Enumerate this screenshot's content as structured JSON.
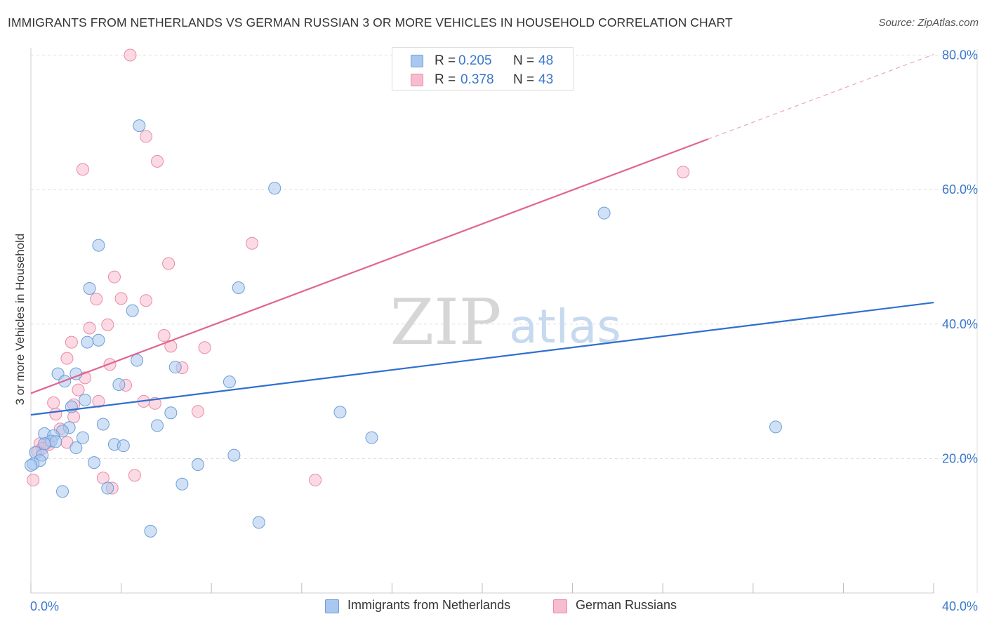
{
  "title": "IMMIGRANTS FROM NETHERLANDS VS GERMAN RUSSIAN 3 OR MORE VEHICLES IN HOUSEHOLD CORRELATION CHART",
  "source": "Source: ZipAtlas.com",
  "watermark": {
    "zip": "ZIP",
    "atlas": "atlas"
  },
  "colors": {
    "blue_fill": "#a9c8ef",
    "blue_stroke": "#6c9ed9",
    "blue_line": "#2f6fce",
    "pink_fill": "#f7bccd",
    "pink_stroke": "#e98aa7",
    "pink_line": "#e06592",
    "axis_text": "#3b78cc",
    "grid": "#dddddd"
  },
  "legend_top": {
    "rows": [
      {
        "r_label": "R =",
        "r_value": "0.205",
        "n_label": "N =",
        "n_value": "48"
      },
      {
        "r_label": "R =",
        "r_value": "0.378",
        "n_label": "N =",
        "n_value": "43"
      }
    ]
  },
  "legend_bottom": {
    "items": [
      {
        "label": "Immigrants from Netherlands"
      },
      {
        "label": "German Russians"
      }
    ]
  },
  "chart_data": {
    "type": "scatter",
    "title": "IMMIGRANTS FROM NETHERLANDS VS GERMAN RUSSIAN 3 OR MORE VEHICLES IN HOUSEHOLD CORRELATION CHART",
    "xlabel": "",
    "ylabel": "3 or more Vehicles in Household",
    "xlim": [
      0,
      40
    ],
    "ylim": [
      0,
      80
    ],
    "x_tick_labels": [
      "0.0%",
      "40.0%"
    ],
    "y_ticks": [
      20,
      40,
      60,
      80
    ],
    "y_tick_labels": [
      "20.0%",
      "40.0%",
      "60.0%",
      "80.0%"
    ],
    "grid": true,
    "legend_position": "top-center",
    "series": [
      {
        "name": "Immigrants from Netherlands",
        "r": 0.205,
        "n": 48,
        "trend": {
          "x0": 0,
          "y0": 26.5,
          "x1": 40,
          "y1": 43.2,
          "x_dashed_end": 40
        },
        "points": [
          [
            4.8,
            69.5
          ],
          [
            10.8,
            60.2
          ],
          [
            3.0,
            51.7
          ],
          [
            25.4,
            56.5
          ],
          [
            2.6,
            45.3
          ],
          [
            9.2,
            45.4
          ],
          [
            4.5,
            42.0
          ],
          [
            3.0,
            37.6
          ],
          [
            2.5,
            37.3
          ],
          [
            4.7,
            34.6
          ],
          [
            6.4,
            33.6
          ],
          [
            1.2,
            32.6
          ],
          [
            2.0,
            32.6
          ],
          [
            1.5,
            31.5
          ],
          [
            8.8,
            31.4
          ],
          [
            3.9,
            31.0
          ],
          [
            2.4,
            28.7
          ],
          [
            1.8,
            27.7
          ],
          [
            6.2,
            26.8
          ],
          [
            13.7,
            26.9
          ],
          [
            3.2,
            25.1
          ],
          [
            5.6,
            24.9
          ],
          [
            1.7,
            24.6
          ],
          [
            33.0,
            24.7
          ],
          [
            1.4,
            24.1
          ],
          [
            0.6,
            23.7
          ],
          [
            1.0,
            23.4
          ],
          [
            2.3,
            23.1
          ],
          [
            15.1,
            23.1
          ],
          [
            0.9,
            22.6
          ],
          [
            1.1,
            22.5
          ],
          [
            0.6,
            22.2
          ],
          [
            3.7,
            22.1
          ],
          [
            4.1,
            21.9
          ],
          [
            2.0,
            21.6
          ],
          [
            0.2,
            20.9
          ],
          [
            0.5,
            20.5
          ],
          [
            9.0,
            20.5
          ],
          [
            0.4,
            19.7
          ],
          [
            0.1,
            19.2
          ],
          [
            2.8,
            19.4
          ],
          [
            7.4,
            19.1
          ],
          [
            3.4,
            15.6
          ],
          [
            6.7,
            16.2
          ],
          [
            1.4,
            15.1
          ],
          [
            10.1,
            10.5
          ],
          [
            5.3,
            9.2
          ],
          [
            0.0,
            19.0
          ]
        ]
      },
      {
        "name": "German Russians",
        "r": 0.378,
        "n": 43,
        "trend": {
          "x0": 0,
          "y0": 29.7,
          "x1": 30.0,
          "y1": 67.5,
          "x_dashed_end": 40,
          "y_dashed_end": 80.1
        },
        "points": [
          [
            4.4,
            80.0
          ],
          [
            5.1,
            67.9
          ],
          [
            5.6,
            64.2
          ],
          [
            2.3,
            63.0
          ],
          [
            28.9,
            62.6
          ],
          [
            9.8,
            52.0
          ],
          [
            6.1,
            49.0
          ],
          [
            3.7,
            47.0
          ],
          [
            4.0,
            43.8
          ],
          [
            5.1,
            43.5
          ],
          [
            2.9,
            43.7
          ],
          [
            3.4,
            39.9
          ],
          [
            2.6,
            39.4
          ],
          [
            5.9,
            38.3
          ],
          [
            1.8,
            37.3
          ],
          [
            6.2,
            36.7
          ],
          [
            7.7,
            36.5
          ],
          [
            1.6,
            34.9
          ],
          [
            3.5,
            34.0
          ],
          [
            6.7,
            33.5
          ],
          [
            2.4,
            32.0
          ],
          [
            4.2,
            30.9
          ],
          [
            2.1,
            30.2
          ],
          [
            3.0,
            28.5
          ],
          [
            5.0,
            28.5
          ],
          [
            5.5,
            28.2
          ],
          [
            1.9,
            28.0
          ],
          [
            1.0,
            28.3
          ],
          [
            7.4,
            27.0
          ],
          [
            1.1,
            26.6
          ],
          [
            1.9,
            26.2
          ],
          [
            1.3,
            24.4
          ],
          [
            0.7,
            22.3
          ],
          [
            1.6,
            22.4
          ],
          [
            0.4,
            22.2
          ],
          [
            0.8,
            22.1
          ],
          [
            0.5,
            21.5
          ],
          [
            0.3,
            21.0
          ],
          [
            4.6,
            17.5
          ],
          [
            12.6,
            16.8
          ],
          [
            3.2,
            17.1
          ],
          [
            3.6,
            15.6
          ],
          [
            0.1,
            16.8
          ]
        ]
      }
    ]
  }
}
